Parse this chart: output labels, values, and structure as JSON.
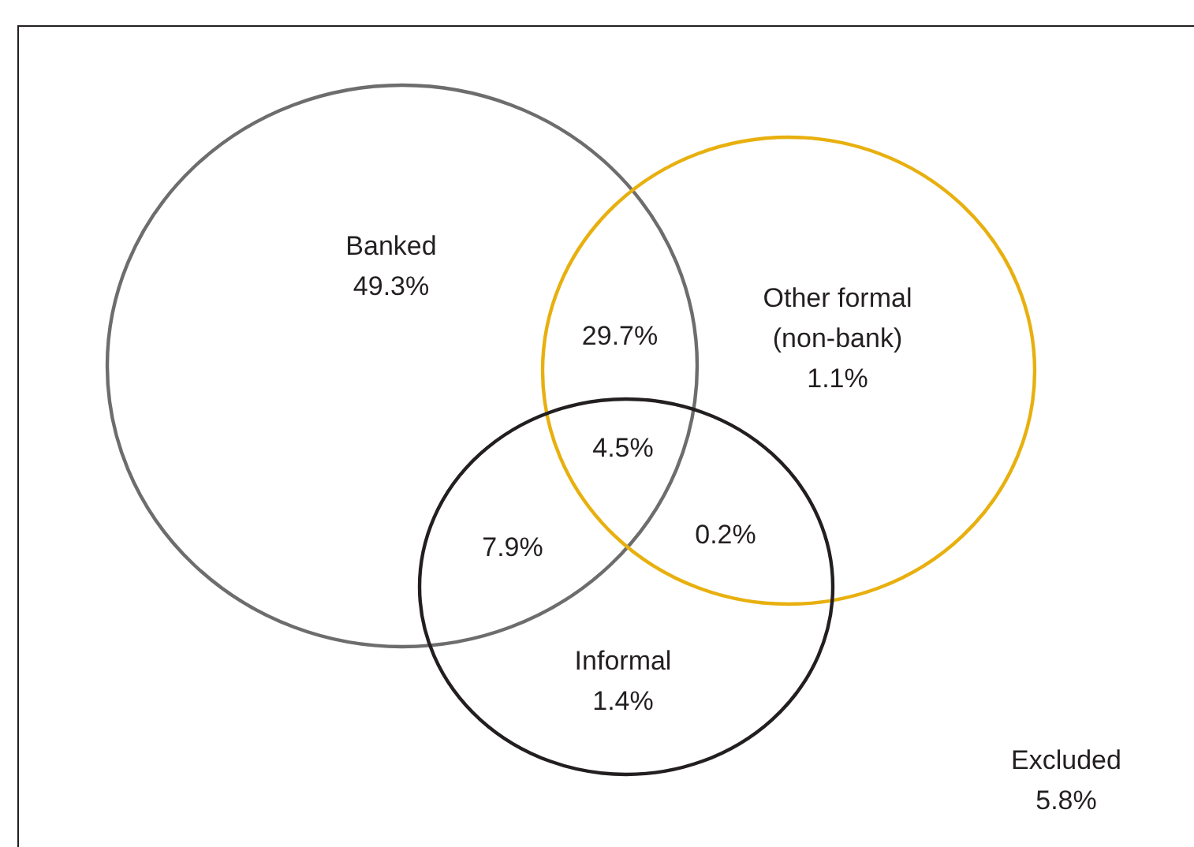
{
  "chart_data": {
    "type": "other",
    "categories": [
      "Banked",
      null,
      "Other formal (non-bank)",
      null,
      null,
      null,
      "Informal",
      "Excluded"
    ],
    "values": [
      49.3,
      29.7,
      1.1,
      4.5,
      7.9,
      0.2,
      1.4,
      5.8
    ],
    "value_labels": [
      "49.3%",
      "29.7%",
      "1.1%",
      "4.5%",
      "7.9%",
      "0.2%",
      "1.4%",
      "5.8%"
    ],
    "colors": [
      "#6d6d6d",
      null,
      "#e8b00f",
      null,
      null,
      null,
      "#231f20",
      null
    ]
  }
}
